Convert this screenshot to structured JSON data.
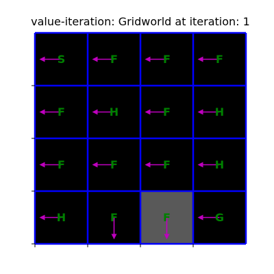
{
  "title": "value-iteration: Gridworld at iteration: 1",
  "colors": {
    "cell_background": "#000000",
    "highlight_cell": "#595959",
    "grid_lines": "#0000ff",
    "cell_text": "#008000",
    "arrows": "#bf00bf"
  },
  "grid": {
    "rows": 4,
    "cols": 4,
    "highlight": {
      "row": 3,
      "col": 2
    },
    "cells": [
      [
        {
          "label": "S",
          "action": "left"
        },
        {
          "label": "F",
          "action": "left"
        },
        {
          "label": "F",
          "action": "left"
        },
        {
          "label": "F",
          "action": "left"
        }
      ],
      [
        {
          "label": "F",
          "action": "left"
        },
        {
          "label": "H",
          "action": "left"
        },
        {
          "label": "F",
          "action": "left"
        },
        {
          "label": "H",
          "action": "left"
        }
      ],
      [
        {
          "label": "F",
          "action": "left"
        },
        {
          "label": "F",
          "action": "left"
        },
        {
          "label": "F",
          "action": "left"
        },
        {
          "label": "H",
          "action": "left"
        }
      ],
      [
        {
          "label": "H",
          "action": "left"
        },
        {
          "label": "F",
          "action": "down"
        },
        {
          "label": "F",
          "action": "down"
        },
        {
          "label": "G",
          "action": "left"
        }
      ]
    ]
  }
}
